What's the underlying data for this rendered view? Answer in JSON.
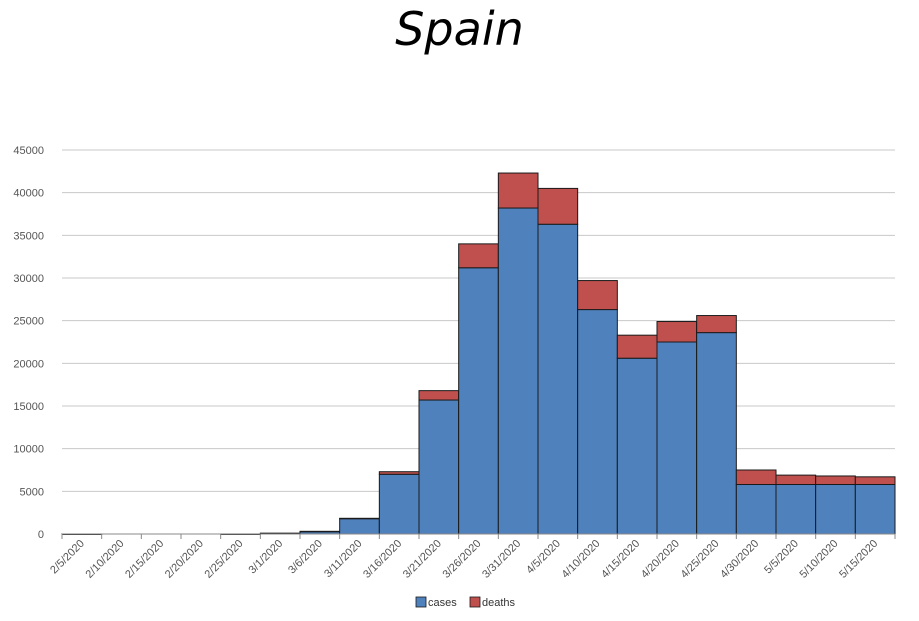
{
  "chart_data": {
    "type": "bar",
    "stacked": true,
    "title": "Spain",
    "xlabel": "",
    "ylabel": "",
    "ylim": [
      0,
      45000
    ],
    "y_ticks": [
      0,
      5000,
      10000,
      15000,
      20000,
      25000,
      30000,
      35000,
      40000,
      45000
    ],
    "grid": "horizontal",
    "legend_position": "bottom",
    "categories": [
      "2/5/2020",
      "2/10/2020",
      "2/15/2020",
      "2/20/2020",
      "2/25/2020",
      "3/1/2020",
      "3/6/2020",
      "3/11/2020",
      "3/16/2020",
      "3/21/2020",
      "3/26/2020",
      "3/31/2020",
      "4/5/2020",
      "4/10/2020",
      "4/15/2020",
      "4/20/2020",
      "4/25/2020",
      "4/30/2020",
      "5/5/2020",
      "5/10/2020",
      "5/15/2020"
    ],
    "series": [
      {
        "name": "cases",
        "color": "#4F81BD",
        "values": [
          2,
          0,
          0,
          0,
          5,
          100,
          300,
          1800,
          7000,
          15700,
          31200,
          38200,
          36300,
          26300,
          20600,
          22500,
          23600,
          5800,
          5800,
          5800,
          5800
        ]
      },
      {
        "name": "deaths",
        "color": "#C0504D",
        "values": [
          0,
          0,
          0,
          0,
          0,
          0,
          10,
          40,
          300,
          1100,
          2800,
          4100,
          4200,
          3400,
          2700,
          2400,
          2000,
          1700,
          1100,
          1000,
          900
        ]
      }
    ]
  }
}
